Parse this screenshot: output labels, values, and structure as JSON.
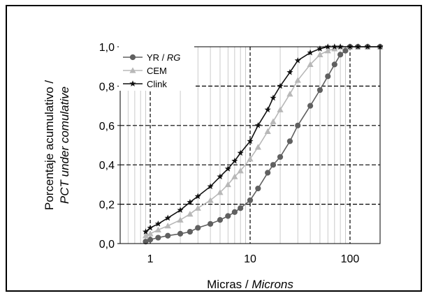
{
  "chart_data": {
    "type": "line",
    "x_scale": "log",
    "xlabel": "Micras / ",
    "xlabel_italic": "Microns",
    "ylabel": "Porcentaje acumulativo /",
    "ylabel_italic": "PCT under comulative",
    "xlim": [
      0.5,
      200
    ],
    "ylim": [
      0,
      1.0
    ],
    "x_ticks": [
      "1",
      "10",
      "100"
    ],
    "x_tick_values": [
      1,
      10,
      100
    ],
    "y_ticks": [
      "0,0",
      "0,2",
      "0,4",
      "0,6",
      "0,8",
      "1,0"
    ],
    "y_tick_values": [
      0,
      0.2,
      0.4,
      0.6,
      0.8,
      1.0
    ],
    "grid": true,
    "legend_position": "top-left",
    "series": [
      {
        "name": "YR / ",
        "name_italic": "RG",
        "color": "#606060",
        "marker": "circle",
        "x": [
          0.9,
          1,
          1.2,
          1.5,
          2,
          2.5,
          3,
          4,
          5,
          6,
          7,
          8,
          10,
          12,
          15,
          17,
          20,
          25,
          30,
          40,
          50,
          60,
          70,
          80,
          90,
          100,
          120,
          150,
          200
        ],
        "y": [
          0.01,
          0.02,
          0.03,
          0.04,
          0.05,
          0.06,
          0.08,
          0.1,
          0.12,
          0.14,
          0.16,
          0.18,
          0.22,
          0.28,
          0.36,
          0.4,
          0.44,
          0.52,
          0.6,
          0.7,
          0.78,
          0.85,
          0.91,
          0.96,
          0.98,
          1.0,
          1.0,
          1.0,
          1.0
        ]
      },
      {
        "name": "CEM",
        "color": "#b8b8b8",
        "marker": "triangle",
        "x": [
          0.9,
          1,
          1.2,
          1.5,
          2,
          2.5,
          3,
          4,
          5,
          6,
          7,
          8,
          10,
          12,
          15,
          17,
          20,
          25,
          30,
          40,
          50,
          60,
          70,
          80,
          100,
          120,
          150,
          200
        ],
        "y": [
          0.04,
          0.05,
          0.07,
          0.09,
          0.12,
          0.15,
          0.18,
          0.22,
          0.26,
          0.3,
          0.34,
          0.37,
          0.43,
          0.49,
          0.57,
          0.62,
          0.68,
          0.76,
          0.83,
          0.91,
          0.96,
          0.98,
          0.99,
          1.0,
          1.0,
          1.0,
          1.0,
          1.0
        ]
      },
      {
        "name": "Clink",
        "color": "#111111",
        "marker": "star",
        "x": [
          0.9,
          1,
          1.2,
          1.5,
          2,
          2.5,
          3,
          4,
          5,
          6,
          7,
          8,
          10,
          12,
          15,
          17,
          20,
          25,
          30,
          40,
          50,
          60,
          70,
          80,
          100,
          120,
          150,
          200
        ],
        "y": [
          0.06,
          0.08,
          0.1,
          0.13,
          0.17,
          0.21,
          0.24,
          0.29,
          0.34,
          0.38,
          0.42,
          0.46,
          0.52,
          0.6,
          0.68,
          0.74,
          0.8,
          0.87,
          0.93,
          0.97,
          0.99,
          1.0,
          1.0,
          1.0,
          1.0,
          1.0,
          1.0,
          1.0
        ]
      }
    ]
  }
}
